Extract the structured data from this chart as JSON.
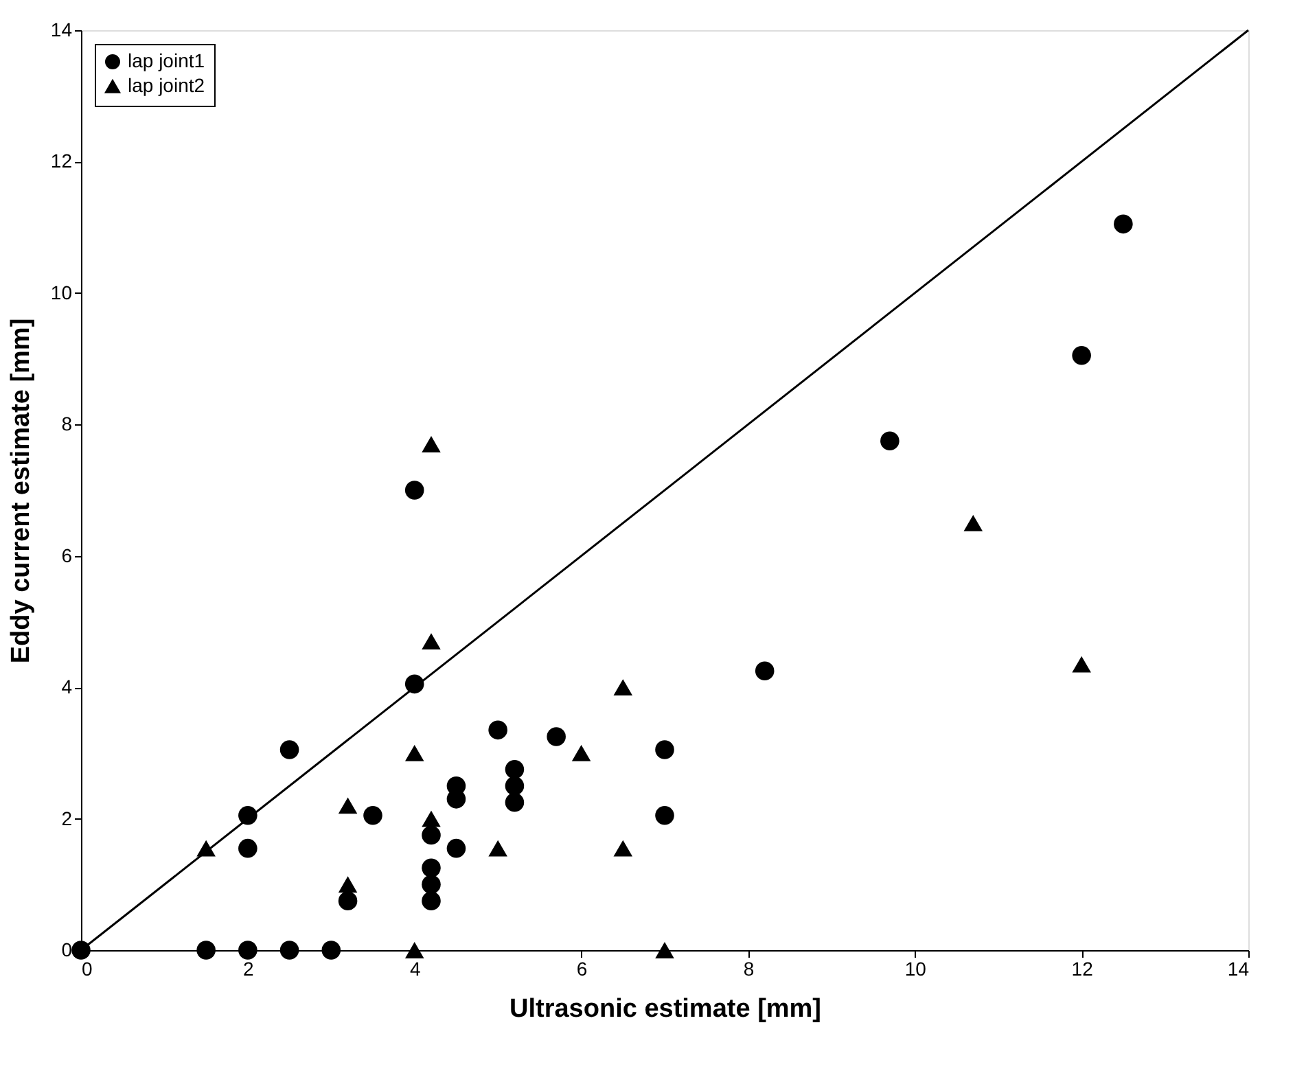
{
  "chart_data": {
    "type": "scatter",
    "xlabel": "Ultrasonic estimate [mm]",
    "ylabel": "Eddy current estimate [mm]",
    "xlim": [
      0,
      14
    ],
    "ylim": [
      0,
      14
    ],
    "xticks": [
      0,
      2,
      4,
      6,
      8,
      10,
      12,
      14
    ],
    "yticks": [
      0,
      2,
      4,
      6,
      8,
      10,
      12,
      14
    ],
    "grid": false,
    "legend": "top left",
    "series": [
      {
        "name": "lap joint1",
        "color": "#000000",
        "marker": "circle",
        "x": [
          0,
          1.5,
          2,
          2.5,
          3,
          2,
          2,
          2.5,
          3.2,
          3.5,
          4,
          4,
          4.2,
          4.2,
          4.2,
          4.2,
          4.5,
          4.5,
          4.5,
          5,
          5.2,
          5.2,
          5.2,
          5.7,
          7,
          7,
          8.2,
          9.7,
          12,
          12.5
        ],
        "values": [
          0,
          0,
          0,
          0,
          0,
          2.05,
          1.55,
          3.05,
          0.75,
          2.05,
          7.0,
          4.05,
          1.75,
          1.25,
          1.0,
          0.75,
          2.5,
          2.3,
          1.55,
          3.35,
          2.75,
          2.5,
          2.25,
          3.25,
          3.05,
          2.05,
          4.25,
          7.75,
          9.05,
          11.05
        ]
      },
      {
        "name": "lap joint2",
        "color": "#000000",
        "marker": "triangle",
        "x": [
          1.5,
          3.2,
          3.2,
          4,
          4,
          4.2,
          4.2,
          4.2,
          5,
          6,
          6.5,
          6.5,
          7,
          10.7,
          12
        ],
        "values": [
          1.55,
          1.0,
          2.2,
          3.0,
          0,
          4.7,
          7.7,
          2.0,
          1.55,
          3.0,
          4.0,
          1.55,
          0,
          6.5,
          4.35
        ]
      },
      {
        "type": "line",
        "color": "#000000",
        "line_style": "solid",
        "x": [
          0,
          14
        ],
        "values": [
          0,
          14
        ]
      }
    ]
  }
}
